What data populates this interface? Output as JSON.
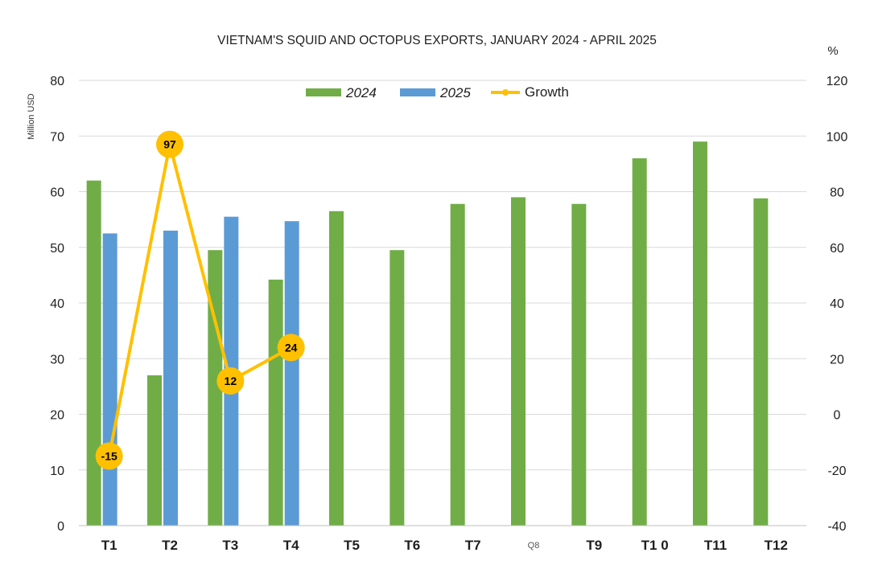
{
  "chart_data": {
    "type": "bar",
    "title": "VIETNAM'S SQUID AND OCTOPUS EXPORTS, JANUARY 2024 - APRIL 2025",
    "ylabel": "Million USD",
    "y2label": "%",
    "ylim": [
      0,
      80
    ],
    "yticks": [
      0,
      10,
      20,
      30,
      40,
      50,
      60,
      70,
      80
    ],
    "y2lim": [
      -40,
      120
    ],
    "y2ticks": [
      -40,
      -20,
      0,
      20,
      40,
      60,
      80,
      100,
      120
    ],
    "categories": [
      "T1",
      "T2",
      "T3",
      "T4",
      "T5",
      "T6",
      "T7",
      "Q8",
      "T9",
      "T1 0",
      "T11",
      "T12"
    ],
    "series": [
      {
        "name": "2024",
        "kind": "bar",
        "color": "#70ad47",
        "values": [
          62,
          27,
          49.5,
          44.2,
          56.5,
          49.5,
          57.8,
          59,
          57.8,
          66,
          69,
          58.8
        ]
      },
      {
        "name": "2025",
        "kind": "bar",
        "color": "#5b9bd5",
        "values": [
          52.5,
          53,
          55.5,
          54.7,
          null,
          null,
          null,
          null,
          null,
          null,
          null,
          null
        ]
      },
      {
        "name": "Growth",
        "kind": "line",
        "axis": "right",
        "color": "#ffc000",
        "values": [
          -15,
          97,
          12,
          24,
          null,
          null,
          null,
          null,
          null,
          null,
          null,
          null
        ],
        "labels": [
          "-15",
          "97",
          "12",
          "24"
        ]
      }
    ],
    "legend_position": "top",
    "grid": true
  }
}
